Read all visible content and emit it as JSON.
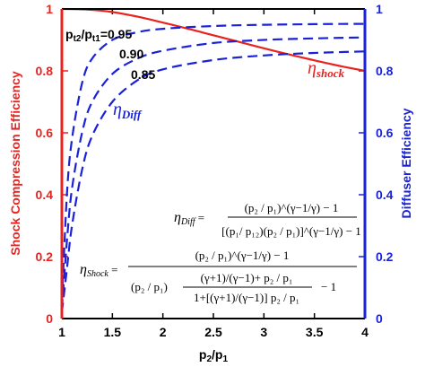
{
  "chart_data": {
    "type": "line",
    "xlabel": "p2/p1",
    "ylabel_left": "Shock Compression Efficiency",
    "ylabel_right": "Diffuser Efficiency",
    "xlim": [
      1,
      4
    ],
    "ylim_left": [
      0,
      1
    ],
    "ylim_right": [
      0,
      1
    ],
    "x_ticks": [
      "1",
      "1.5",
      "2",
      "2.5",
      "3",
      "3.5",
      "4"
    ],
    "y_left_ticks": [
      "0",
      "0.2",
      "0.4",
      "0.6",
      "0.8",
      "1"
    ],
    "y_right_ticks": [
      "0",
      "0.2",
      "0.4",
      "0.6",
      "0.8",
      "1"
    ],
    "grid": false,
    "colors": {
      "shock": "#e8231f",
      "diffuser": "#1a22d8",
      "axis_left": "#e8231f",
      "axis_right": "#1a22d8"
    },
    "series": [
      {
        "name": "η_shock",
        "axis": "left",
        "style": "solid",
        "x": [
          1,
          1.25,
          1.5,
          1.75,
          2,
          2.25,
          2.5,
          2.75,
          3,
          3.25,
          3.5,
          3.75,
          4
        ],
        "y": [
          1.0,
          0.998,
          0.99,
          0.975,
          0.956,
          0.936,
          0.915,
          0.894,
          0.873,
          0.853,
          0.834,
          0.816,
          0.8
        ]
      },
      {
        "name": "0.95",
        "axis": "right",
        "style": "dashed",
        "x": [
          1,
          1.05,
          1.1,
          1.2,
          1.3,
          1.5,
          1.75,
          2,
          2.5,
          3,
          3.5,
          4
        ],
        "y": [
          0.05,
          0.4,
          0.58,
          0.76,
          0.84,
          0.9,
          0.925,
          0.936,
          0.945,
          0.949,
          0.951,
          0.952
        ]
      },
      {
        "name": "0.90",
        "axis": "right",
        "style": "dashed",
        "x": [
          1,
          1.05,
          1.1,
          1.2,
          1.3,
          1.5,
          1.75,
          2,
          2.5,
          3,
          3.5,
          4
        ],
        "y": [
          0.03,
          0.25,
          0.42,
          0.6,
          0.7,
          0.79,
          0.84,
          0.865,
          0.89,
          0.9,
          0.905,
          0.908
        ]
      },
      {
        "name": "0.85",
        "axis": "right",
        "style": "dashed",
        "x": [
          1,
          1.05,
          1.1,
          1.2,
          1.3,
          1.5,
          1.75,
          2,
          2.5,
          3,
          3.5,
          4
        ],
        "y": [
          0.02,
          0.16,
          0.3,
          0.48,
          0.59,
          0.7,
          0.77,
          0.805,
          0.835,
          0.85,
          0.858,
          0.863
        ]
      }
    ],
    "annotations": {
      "ratio_label": "p",
      "ratio_label_sub1": "t2",
      "ratio_label_mid": "/p",
      "ratio_label_sub2": "t1",
      "ratio_095": "=0.95",
      "ratio_090": "0.90",
      "ratio_085": "0.85",
      "eta": "η",
      "shock_sub": "shock",
      "diff_sub": "Diff"
    },
    "equations": {
      "diff_lhs": "η",
      "diff_lhs_sub": "Diff",
      "diff_num": "(p₂ / p₁)^(γ−1/γ) − 1",
      "diff_den": "[(p₁/ p₁₂)(p₂ / p₁)]^(γ−1/γ) − 1",
      "shock_lhs": "η",
      "shock_lhs_sub": "Shock",
      "shock_num": "(p₂ / p₁)^(γ−1/γ) − 1",
      "shock_den_a": "(p₂ / p₁)",
      "shock_den_b_num": "(γ+1)/(γ−1)+ p₂ / p₁",
      "shock_den_b_den": "1+[(γ+1)/(γ−1)] p₂ / p₁",
      "shock_den_tail": "− 1"
    }
  }
}
